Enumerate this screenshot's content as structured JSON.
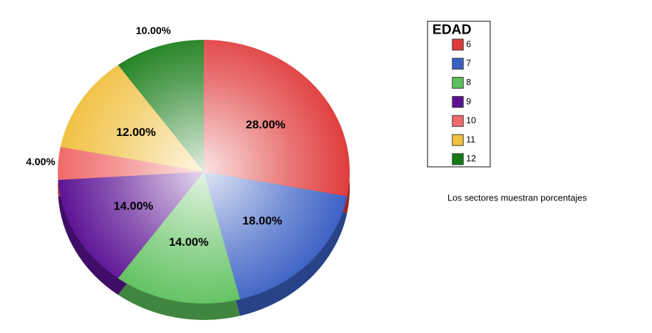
{
  "chart_data": {
    "type": "pie",
    "legend_title": "EDAD",
    "categories": [
      "6",
      "7",
      "8",
      "9",
      "10",
      "11",
      "12"
    ],
    "values": [
      28,
      18,
      14,
      14,
      4,
      12,
      10
    ],
    "value_labels": [
      "28.00%",
      "18.00%",
      "14.00%",
      "14.00%",
      "4.00%",
      "12.00%",
      "10.00%"
    ],
    "colors": [
      "#e03a3a",
      "#3a60c4",
      "#5cc05c",
      "#5c1294",
      "#f06868",
      "#f0c040",
      "#147a14"
    ],
    "legend": "right",
    "footnote": "Los sectores muestran porcentajes"
  }
}
